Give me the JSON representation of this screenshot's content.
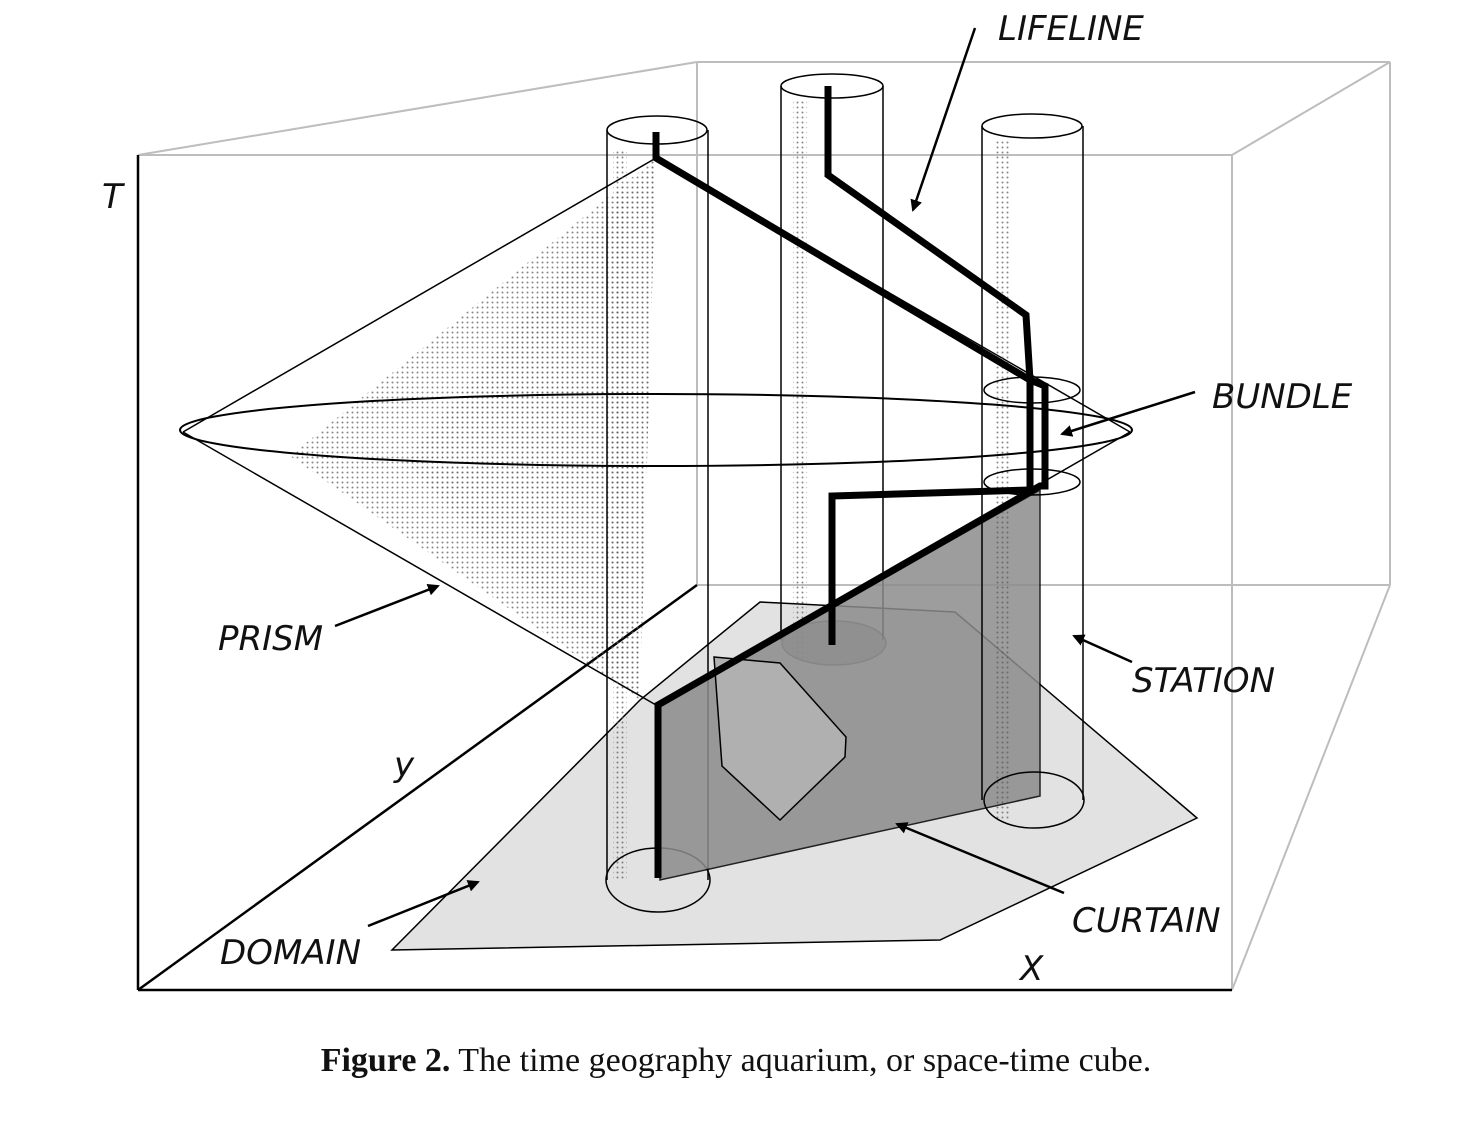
{
  "labels": {
    "lifeline": "LIFELINE",
    "bundle": "BUNDLE",
    "prism": "PRISM",
    "station": "STATION",
    "domain": "DOMAIN",
    "curtain": "CURTAIN",
    "axis_t": "T",
    "axis_y": "y",
    "axis_x": "X"
  },
  "caption": {
    "number": "Figure 2.",
    "text": " The time geography aquarium, or space-time cube."
  },
  "colors": {
    "cube_edge": "#bdbdbd",
    "domain_fill": "#e2e2e2",
    "curtain_fill": "#8c8c8c",
    "obstacle_fill": "#b0b0b0",
    "lifeline": "#000000"
  }
}
